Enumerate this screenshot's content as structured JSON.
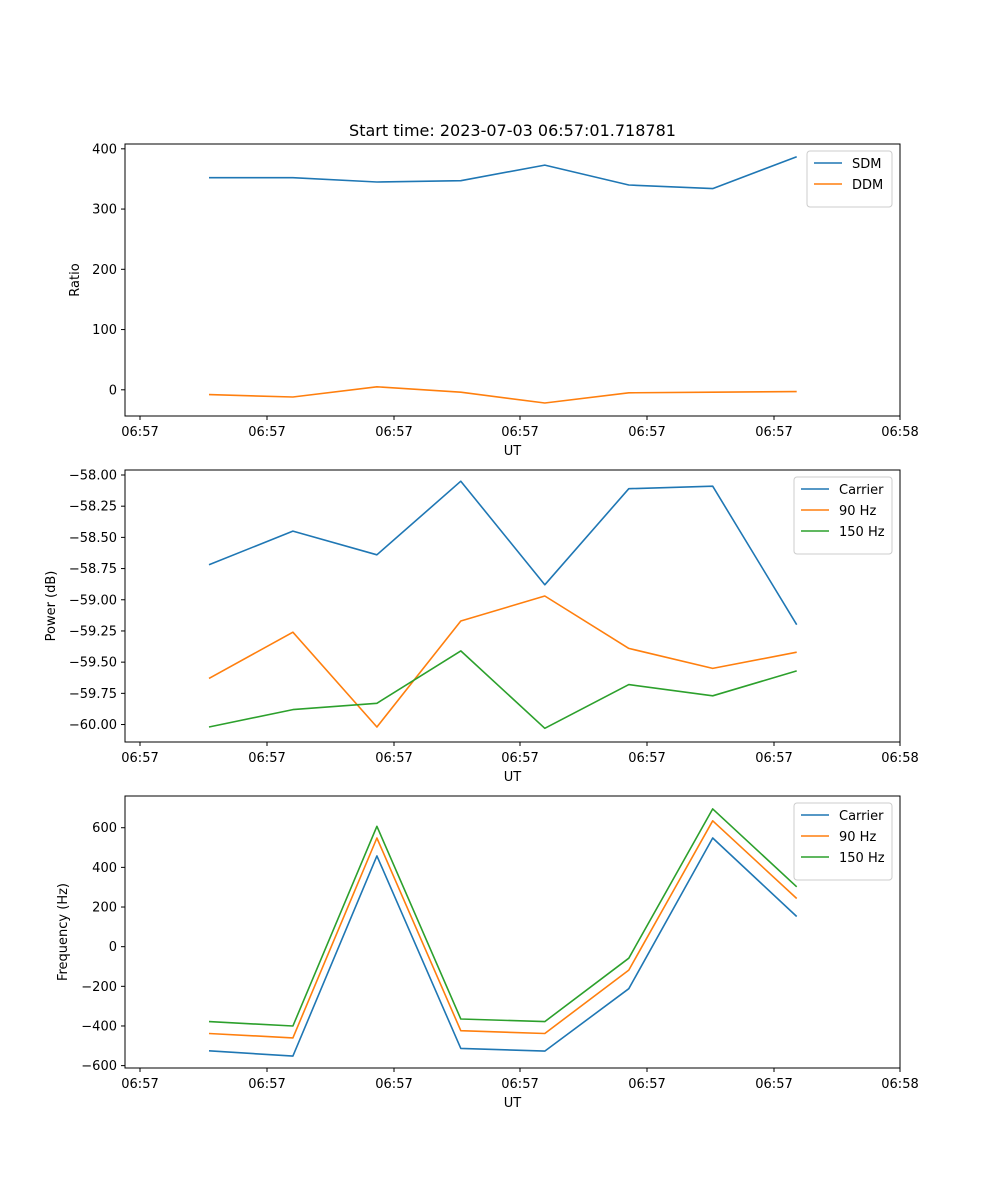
{
  "page_title": "Start time: 2023-07-03 06:57:01.718781",
  "chart_data": [
    {
      "type": "line",
      "title": "Start time: 2023-07-03 06:57:01.718781",
      "xlabel": "UT",
      "ylabel": "Ratio",
      "x_tick_labels": [
        "06:57",
        "06:57",
        "06:57",
        "06:57",
        "06:57",
        "06:57",
        "06:58"
      ],
      "x": [
        1.25,
        1.9,
        2.55,
        3.2,
        3.85,
        4.5,
        5.15,
        5.8
      ],
      "xlim": [
        0.6,
        6.6
      ],
      "ylim": [
        -43.5,
        408
      ],
      "yticks": [
        0,
        100,
        200,
        300,
        400
      ],
      "ytick_labels": [
        "0",
        "100",
        "200",
        "300",
        "400"
      ],
      "grid": false,
      "legend_position": "top-right",
      "series": [
        {
          "name": "SDM",
          "color": "#1f77b4",
          "values": [
            352,
            352,
            345,
            347,
            373,
            340,
            334,
            387
          ]
        },
        {
          "name": "DDM",
          "color": "#ff7f0e",
          "values": [
            -8,
            -12,
            5,
            -4,
            -22,
            -5,
            -4,
            -3
          ]
        }
      ]
    },
    {
      "type": "line",
      "title": "",
      "xlabel": "UT",
      "ylabel": "Power (dB)",
      "x_tick_labels": [
        "06:57",
        "06:57",
        "06:57",
        "06:57",
        "06:57",
        "06:57",
        "06:58"
      ],
      "x": [
        1.25,
        1.9,
        2.55,
        3.2,
        3.85,
        4.5,
        5.15,
        5.8
      ],
      "xlim": [
        0.6,
        6.6
      ],
      "ylim": [
        -60.14,
        -57.96
      ],
      "yticks": [
        -60.0,
        -59.75,
        -59.5,
        -59.25,
        -59.0,
        -58.75,
        -58.5,
        -58.25,
        -58.0
      ],
      "ytick_labels": [
        "−60.00",
        "−59.75",
        "−59.50",
        "−59.25",
        "−59.00",
        "−58.75",
        "−58.50",
        "−58.25",
        "−58.00"
      ],
      "grid": false,
      "legend_position": "top-right",
      "series": [
        {
          "name": "Carrier",
          "color": "#1f77b4",
          "values": [
            -58.72,
            -58.45,
            -58.64,
            -58.05,
            -58.88,
            -58.11,
            -58.09,
            -59.2
          ]
        },
        {
          "name": "90 Hz",
          "color": "#ff7f0e",
          "values": [
            -59.63,
            -59.26,
            -60.02,
            -59.17,
            -58.97,
            -59.39,
            -59.55,
            -59.42
          ]
        },
        {
          "name": "150 Hz",
          "color": "#2ca02c",
          "values": [
            -60.02,
            -59.88,
            -59.83,
            -59.41,
            -60.03,
            -59.68,
            -59.77,
            -59.57
          ]
        }
      ]
    },
    {
      "type": "line",
      "title": "",
      "xlabel": "UT",
      "ylabel": "Frequency (Hz)",
      "x_tick_labels": [
        "06:57",
        "06:57",
        "06:57",
        "06:57",
        "06:57",
        "06:57",
        "06:58"
      ],
      "x": [
        1.25,
        1.9,
        2.55,
        3.2,
        3.85,
        4.5,
        5.15,
        5.8
      ],
      "xlim": [
        0.6,
        6.6
      ],
      "ylim": [
        -612,
        760
      ],
      "yticks": [
        -600,
        -400,
        -200,
        0,
        200,
        400,
        600
      ],
      "ytick_labels": [
        "−600",
        "−400",
        "−200",
        "0",
        "200",
        "400",
        "600"
      ],
      "grid": false,
      "legend_position": "top-right",
      "series": [
        {
          "name": "Carrier",
          "color": "#1f77b4",
          "values": [
            -525,
            -552,
            458,
            -513,
            -527,
            -212,
            548,
            152
          ]
        },
        {
          "name": "90 Hz",
          "color": "#ff7f0e",
          "values": [
            -438,
            -460,
            548,
            -424,
            -438,
            -118,
            635,
            243
          ]
        },
        {
          "name": "150 Hz",
          "color": "#2ca02c",
          "values": [
            -378,
            -400,
            607,
            -365,
            -378,
            -58,
            695,
            302
          ]
        }
      ]
    }
  ]
}
